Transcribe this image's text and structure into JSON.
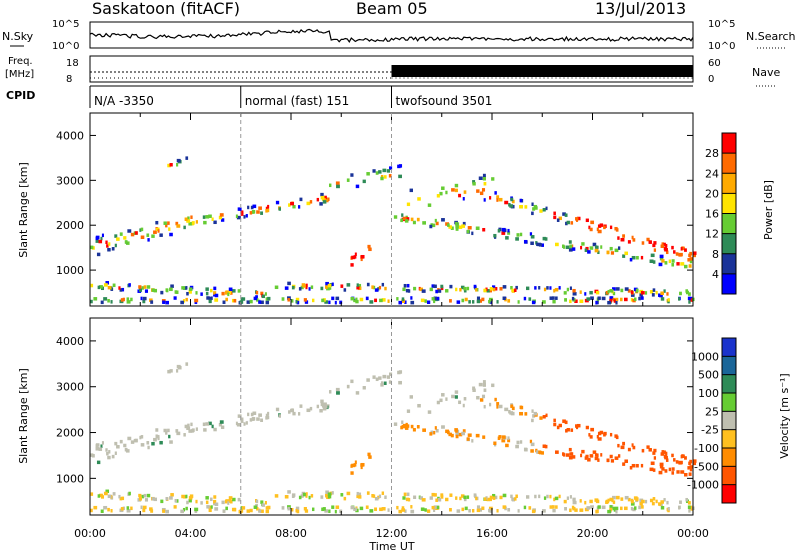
{
  "header": {
    "station": "Saskatoon (fitACF)",
    "beam": "Beam 05",
    "date": "13/Jul/2013"
  },
  "sky_panel": {
    "left_label": "N.Sky",
    "right_label": "N.Search",
    "left_ticks": [
      "10^5",
      "10^0"
    ],
    "right_ticks": [
      "10^5",
      "10^0"
    ]
  },
  "freq_panel": {
    "left_label_1": "Freq.",
    "left_label_2": "[MHz]",
    "right_label": "Nave",
    "left_ticks": [
      "18",
      "8"
    ],
    "right_ticks": [
      "60",
      "0"
    ]
  },
  "cpid_panel": {
    "label": "CPID",
    "segments": [
      {
        "text": "N/A -3350",
        "start_hour": 0,
        "end_hour": 6
      },
      {
        "text": "normal (fast) 151",
        "start_hour": 6,
        "end_hour": 12
      },
      {
        "text": "twofsound 3501",
        "start_hour": 12,
        "end_hour": 24
      }
    ]
  },
  "power_panel": {
    "ylabel": "Slant Range [km]",
    "cbar_label": "Power [dB]",
    "cbar_ticks": [
      "28",
      "24",
      "20",
      "16",
      "12",
      "8",
      "4"
    ],
    "cbar_colors": [
      "#ff0000",
      "#ff6a00",
      "#ffaa00",
      "#ffe400",
      "#66cc33",
      "#2e8b57",
      "#1a3399",
      "#0000ff"
    ]
  },
  "velocity_panel": {
    "ylabel": "Slant Range [km]",
    "cbar_label": "Velocity [m s⁻¹]",
    "cbar_ticks": [
      "1000",
      "500",
      "100",
      "25",
      "-25",
      "-100",
      "-500",
      "-1000"
    ],
    "cbar_colors": [
      "#1a33cc",
      "#1a6699",
      "#2e8b57",
      "#66cc33",
      "#bfbfb0",
      "#ffc020",
      "#ff8c00",
      "#ff5500",
      "#ff0000"
    ]
  },
  "x_axis": {
    "label": "Time UT",
    "ticks": [
      "00:00",
      "04:00",
      "08:00",
      "12:00",
      "16:00",
      "20:00",
      "00:00"
    ]
  },
  "chart_data": {
    "type": "heatmap",
    "title": "Saskatoon (fitACF)  Beam 05  13/Jul/2013",
    "xlabel": "Time UT",
    "ylabel": "Slant Range [km]",
    "xlim_hours": [
      0,
      24
    ],
    "ylim_km": [
      200,
      4500
    ],
    "y_ticks": [
      1000,
      2000,
      3000,
      4000
    ],
    "frequency_ylim_mhz": [
      8,
      18
    ],
    "nave_ylim": [
      0,
      60
    ],
    "noise_log_ylim": [
      0,
      5
    ],
    "cpid_change_hours": [
      6,
      12
    ],
    "power_colorbar_db": [
      4,
      8,
      12,
      16,
      20,
      24,
      28
    ],
    "velocity_colorbar_ms": [
      -1000,
      -500,
      -100,
      -25,
      25,
      100,
      500,
      1000
    ]
  }
}
